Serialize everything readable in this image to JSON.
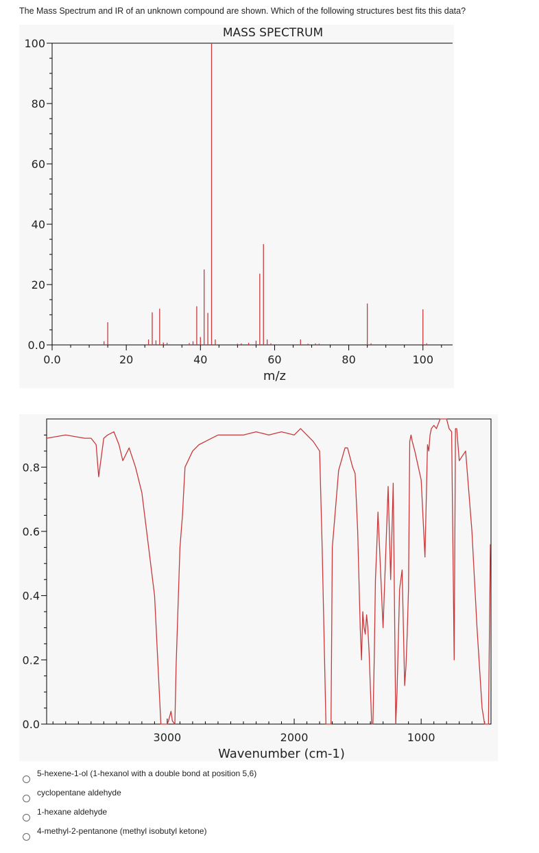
{
  "question": "The Mass Spectrum and IR of an unknown compound are shown. Which of the following structures best fits this data?",
  "colors": {
    "series": "#c8383a",
    "plot_bg": "#f7f7f7",
    "axis": "#000000"
  },
  "chart_data": [
    {
      "type": "bar",
      "title": "MASS SPECTRUM",
      "xlabel": "m/z",
      "ylabel": "",
      "xlim": [
        0,
        108
      ],
      "ylim": [
        0,
        100
      ],
      "xticks": [
        0,
        20,
        40,
        60,
        80,
        100
      ],
      "xtick_labels": [
        "0.0",
        "20",
        "40",
        "60",
        "80",
        "100"
      ],
      "yticks": [
        0,
        20,
        40,
        60,
        80,
        100
      ],
      "ytick_labels": [
        "0.0",
        "20",
        "40",
        "60",
        "80",
        "100"
      ],
      "x": [
        14,
        15,
        26,
        27,
        28,
        29,
        30,
        31,
        37,
        38,
        39,
        40,
        41,
        42,
        43,
        44,
        50,
        51,
        53,
        55,
        56,
        57,
        58,
        59,
        67,
        69,
        71,
        72,
        85,
        86,
        100,
        101
      ],
      "values": [
        1.2,
        7.5,
        1.8,
        10.8,
        1.5,
        12.0,
        0.8,
        0.7,
        0.6,
        1.2,
        12.8,
        2.6,
        25.0,
        10.6,
        100,
        1.8,
        0.4,
        0.5,
        0.7,
        1.4,
        23.6,
        33.4,
        1.8,
        0.5,
        1.8,
        0.4,
        0.5,
        0.4,
        13.7,
        0.5,
        11.8,
        0.5
      ]
    },
    {
      "type": "line",
      "title": "",
      "xlabel": "Wavenumber (cm-1)",
      "ylabel": "",
      "xlim": [
        3950,
        450
      ],
      "ylim": [
        0,
        0.95
      ],
      "xticks": [
        3000,
        2000,
        1000
      ],
      "xtick_labels": [
        "3000",
        "2000",
        "1000"
      ],
      "yticks": [
        0.0,
        0.2,
        0.4,
        0.6,
        0.8
      ],
      "ytick_labels": [
        "0.0",
        "0.2",
        "0.4",
        "0.6",
        "0.8"
      ],
      "series": [
        {
          "x": [
            3950,
            3800,
            3650,
            3600,
            3560,
            3540,
            3500,
            3470,
            3420,
            3380,
            3350,
            3300,
            3250,
            3200,
            3100,
            3050,
            3000,
            2990,
            2970,
            2960,
            2940,
            2930,
            2900,
            2880,
            2870,
            2860,
            2800,
            2750,
            2700,
            2650,
            2600,
            2500,
            2400,
            2300,
            2200,
            2100,
            2000,
            1950,
            1900,
            1850,
            1800,
            1780,
            1750,
            1740,
            1730,
            1720,
            1710,
            1700,
            1650,
            1600,
            1580,
            1560,
            1540,
            1520,
            1500,
            1480,
            1470,
            1460,
            1450,
            1440,
            1430,
            1420,
            1410,
            1390,
            1380,
            1370,
            1360,
            1350,
            1340,
            1300,
            1260,
            1240,
            1220,
            1200,
            1190,
            1170,
            1150,
            1130,
            1120,
            1110,
            1100,
            1090,
            1080,
            1070,
            1050,
            1000,
            970,
            950,
            940,
            930,
            920,
            900,
            880,
            850,
            800,
            780,
            760,
            740,
            730,
            720,
            700,
            650,
            600,
            560,
            520,
            500,
            470,
            455
          ],
          "y": [
            0.89,
            0.9,
            0.89,
            0.89,
            0.87,
            0.77,
            0.89,
            0.9,
            0.91,
            0.87,
            0.82,
            0.86,
            0.8,
            0.72,
            0.4,
            0.0,
            0.0,
            0.01,
            0.04,
            0.01,
            0.0,
            0.18,
            0.55,
            0.65,
            0.73,
            0.8,
            0.85,
            0.87,
            0.88,
            0.89,
            0.9,
            0.9,
            0.9,
            0.91,
            0.9,
            0.91,
            0.9,
            0.92,
            0.9,
            0.88,
            0.85,
            0.55,
            0.0,
            0.0,
            0.0,
            0.0,
            0.0,
            0.55,
            0.79,
            0.86,
            0.86,
            0.83,
            0.8,
            0.78,
            0.6,
            0.3,
            0.2,
            0.35,
            0.3,
            0.28,
            0.34,
            0.3,
            0.22,
            0.0,
            0.0,
            0.2,
            0.45,
            0.55,
            0.66,
            0.3,
            0.74,
            0.45,
            0.75,
            0.0,
            0.1,
            0.42,
            0.48,
            0.12,
            0.18,
            0.28,
            0.42,
            0.88,
            0.9,
            0.88,
            0.85,
            0.76,
            0.52,
            0.87,
            0.85,
            0.9,
            0.92,
            0.93,
            0.92,
            0.95,
            0.95,
            0.92,
            0.91,
            0.2,
            0.92,
            0.92,
            0.82,
            0.85,
            0.6,
            0.3,
            0.05,
            0.0,
            0.0,
            0.56
          ]
        }
      ]
    }
  ],
  "options": [
    {
      "label": "5-hexene-1-ol (1-hexanol with a double bond at position 5,6)"
    },
    {
      "label": "cyclopentane aldehyde"
    },
    {
      "label": "1-hexane aldehyde"
    },
    {
      "label": "4-methyl-2-pentanone (methyl isobutyl ketone)"
    }
  ]
}
